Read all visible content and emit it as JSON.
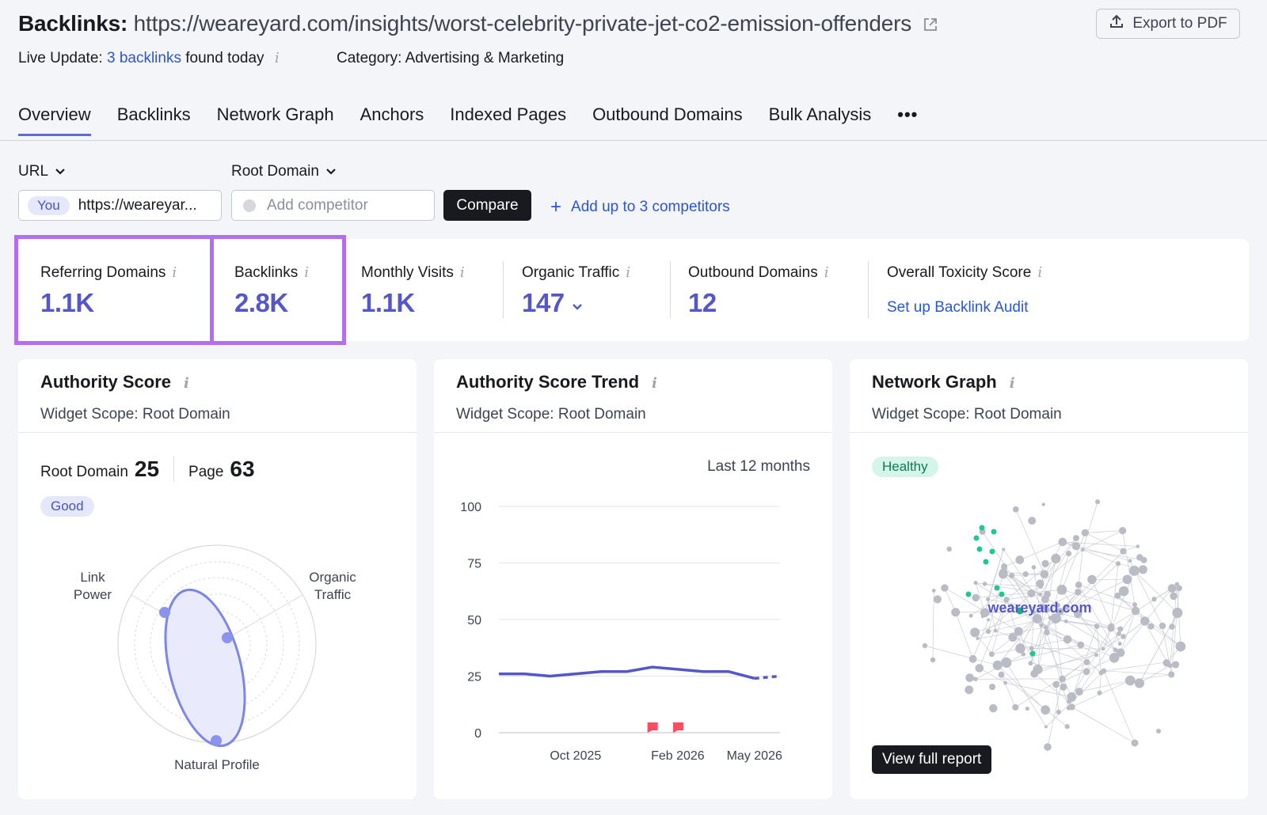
{
  "header": {
    "title_label": "Backlinks:",
    "title_url": "https://weareyard.com/insights/worst-celebrity-private-jet-co2-emission-offenders",
    "export_label": "Export to PDF",
    "live_prefix": "Live Update:",
    "live_link": "3 backlinks",
    "live_suffix": "found today",
    "category_label": "Category:",
    "category_value": "Advertising & Marketing"
  },
  "tabs": [
    "Overview",
    "Backlinks",
    "Network Graph",
    "Anchors",
    "Indexed Pages",
    "Outbound Domains",
    "Bulk Analysis"
  ],
  "tabs_more": "•••",
  "filters": {
    "scope_left": "URL",
    "scope_right": "Root Domain",
    "you_pill": "You",
    "you_value": "https://weareyar...",
    "competitor_placeholder": "Add competitor",
    "compare_label": "Compare",
    "add_competitors": "Add up to 3 competitors"
  },
  "metrics": {
    "referring_domains": {
      "label": "Referring Domains",
      "value": "1.1K"
    },
    "backlinks": {
      "label": "Backlinks",
      "value": "2.8K"
    },
    "monthly_visits": {
      "label": "Monthly Visits",
      "value": "1.1K"
    },
    "organic_traffic": {
      "label": "Organic Traffic",
      "value": "147"
    },
    "outbound_domains": {
      "label": "Outbound Domains",
      "value": "12"
    },
    "toxicity": {
      "label": "Overall Toxicity Score",
      "link": "Set up Backlink Audit"
    }
  },
  "authority_card": {
    "title": "Authority Score",
    "scope": "Widget Scope: Root Domain",
    "root_label": "Root Domain",
    "root_value": "25",
    "page_label": "Page",
    "page_value": "63",
    "badge": "Good",
    "axis_link_1": "Link",
    "axis_link_2": "Power",
    "axis_organic_1": "Organic",
    "axis_organic_2": "Traffic",
    "axis_natural": "Natural Profile"
  },
  "trend_card": {
    "title": "Authority Score Trend",
    "scope": "Widget Scope: Root Domain",
    "period": "Last 12 months"
  },
  "chart_data": {
    "type": "line",
    "title": "Authority Score Trend",
    "x_ticks": [
      "Oct 2025",
      "Feb 2026",
      "May 2026"
    ],
    "y_ticks": [
      "0",
      "25",
      "50",
      "75",
      "100"
    ],
    "ylim": [
      0,
      100
    ],
    "x": [
      "Jul 2025",
      "Aug 2025",
      "Sep 2025",
      "Oct 2025",
      "Nov 2025",
      "Dec 2025",
      "Jan 2026",
      "Feb 2026",
      "Mar 2026",
      "Apr 2026",
      "May 2026",
      "Jun 2026"
    ],
    "series": [
      {
        "values": [
          26,
          26,
          25,
          26,
          27,
          27,
          29,
          28,
          27,
          27,
          24,
          25
        ],
        "color": "#5457c9"
      }
    ],
    "flags_at": [
      "Jan 2026",
      "Feb 2026"
    ],
    "grid": true
  },
  "network_card": {
    "title": "Network Graph",
    "scope": "Widget Scope: Root Domain",
    "badge": "Healthy",
    "center_label": "weareyard.com",
    "view_button": "View full report"
  },
  "colors": {
    "accent": "#5457c9",
    "link": "#2b55d8",
    "highlight": "#b36ef2",
    "healthy": "#1ec98a",
    "flag": "#ff4d5e"
  }
}
